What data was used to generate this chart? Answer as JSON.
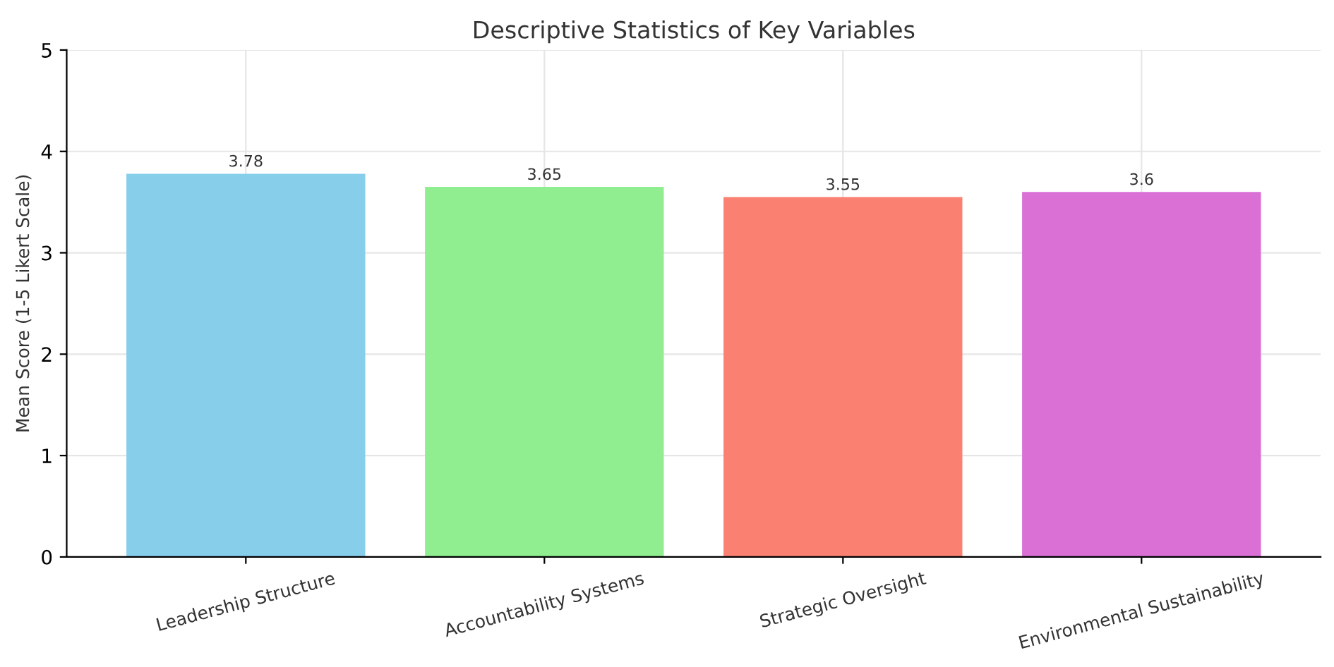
{
  "chart_data": {
    "type": "bar",
    "title": "Descriptive Statistics of Key Variables",
    "ylabel": "Mean Score (1-5 Likert Scale)",
    "categories": [
      "Leadership Structure",
      "Accountability Systems",
      "Strategic Oversight",
      "Environmental Sustainability"
    ],
    "values": [
      3.78,
      3.65,
      3.55,
      3.6
    ],
    "colors": [
      "#87ceeb",
      "#90ee90",
      "#fa8072",
      "#da70d6"
    ],
    "value_labels": [
      "3.78",
      "3.65",
      "3.55",
      "3.6"
    ],
    "ylim": [
      0,
      5
    ],
    "yticks": [
      0,
      1,
      2,
      3,
      4,
      5
    ],
    "grid": true
  }
}
